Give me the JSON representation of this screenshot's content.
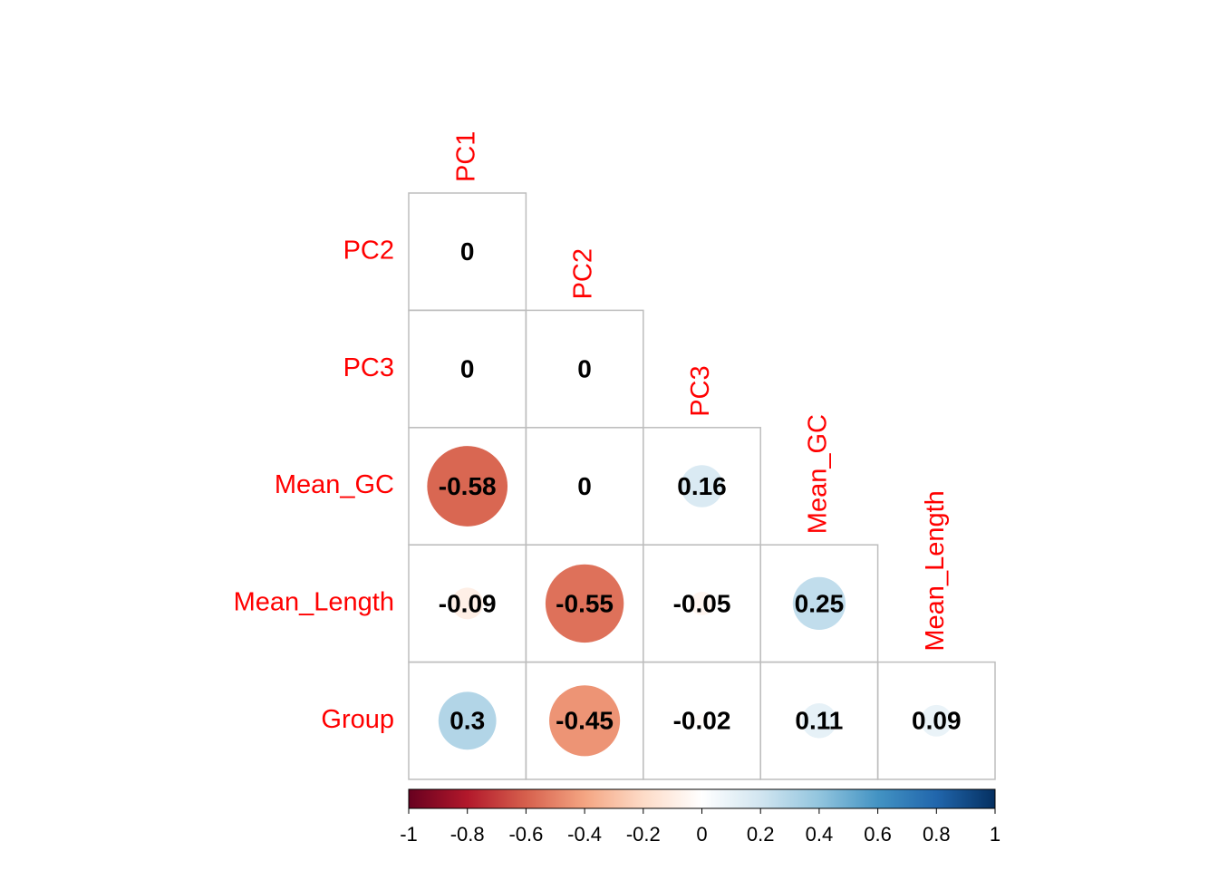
{
  "chart_data": {
    "type": "corrplot",
    "columns": [
      "PC1",
      "PC2",
      "PC3",
      "Mean_GC",
      "Mean_Length"
    ],
    "rows": [
      "PC2",
      "PC3",
      "Mean_GC",
      "Mean_Length",
      "Group"
    ],
    "values": [
      [
        0,
        null,
        null,
        null,
        null
      ],
      [
        0,
        0,
        null,
        null,
        null
      ],
      [
        -0.58,
        0,
        0.16,
        null,
        null
      ],
      [
        -0.09,
        -0.55,
        -0.05,
        0.25,
        null
      ],
      [
        0.3,
        -0.45,
        -0.02,
        0.11,
        0.09
      ]
    ],
    "palette": [
      "#67001F",
      "#B2182B",
      "#D6604D",
      "#F4A582",
      "#FDDBC7",
      "#FFFFFF",
      "#D1E5F0",
      "#92C5DE",
      "#4393C3",
      "#2166AC",
      "#053061"
    ],
    "clim": [
      -1,
      1
    ],
    "cticks": [
      -1,
      -0.8,
      -0.6,
      -0.4,
      -0.2,
      0,
      0.2,
      0.4,
      0.6,
      0.8,
      1
    ],
    "label_color": "#ff0000",
    "grid_color": "#bdbdbd"
  }
}
